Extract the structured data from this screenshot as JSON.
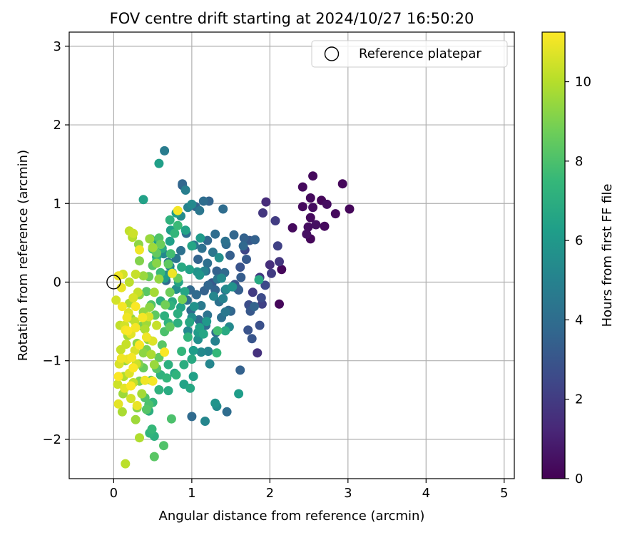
{
  "chart_data": {
    "type": "scatter",
    "title": "FOV centre drift starting at 2024/10/27 16:50:20",
    "xlabel": "Angular distance from reference (arcmin)",
    "ylabel": "Rotation from reference (arcmin)",
    "xlim": [
      -0.57,
      5.13
    ],
    "ylim": [
      -2.5,
      3.18
    ],
    "xticks": [
      0,
      1,
      2,
      3,
      4,
      5
    ],
    "yticks": [
      -2,
      -1,
      0,
      1,
      2,
      3
    ],
    "xtick_labels": [
      "0",
      "1",
      "2",
      "3",
      "4",
      "5"
    ],
    "ytick_labels": [
      "−2",
      "−1",
      "0",
      "1",
      "2",
      "3"
    ],
    "grid": true,
    "legend": {
      "placement": "top-right",
      "entries": [
        "Reference platepar"
      ]
    },
    "reference_point": {
      "name": "Reference platepar",
      "x": 0,
      "y": 0
    },
    "colorbar": {
      "label": "Hours from first FF file",
      "range": [
        0,
        11.25
      ],
      "ticks": [
        0,
        2,
        4,
        6,
        8,
        10
      ],
      "tick_labels": [
        "0",
        "2",
        "4",
        "6",
        "8",
        "10"
      ],
      "colormap": "viridis"
    },
    "colormap_stops": [
      "#440154",
      "#482878",
      "#3e4989",
      "#31688e",
      "#26828e",
      "#1f9e89",
      "#35b779",
      "#6ece58",
      "#b5de2b",
      "#fde725"
    ],
    "points": [
      [
        2.93,
        1.25,
        0.2
      ],
      [
        2.55,
        1.35,
        0.3
      ],
      [
        2.42,
        1.21,
        0.3
      ],
      [
        2.66,
        1.04,
        0.2
      ],
      [
        2.52,
        1.07,
        0.3
      ],
      [
        2.73,
        0.99,
        0.4
      ],
      [
        2.84,
        0.87,
        0.3
      ],
      [
        3.02,
        0.93,
        0.2
      ],
      [
        2.55,
        0.95,
        0.4
      ],
      [
        2.42,
        0.96,
        0.3
      ],
      [
        2.52,
        0.82,
        0.3
      ],
      [
        2.59,
        0.73,
        0.5
      ],
      [
        2.7,
        0.71,
        0.3
      ],
      [
        2.49,
        0.7,
        0.4
      ],
      [
        2.47,
        0.61,
        0.5
      ],
      [
        2.52,
        0.55,
        0.2
      ],
      [
        2.29,
        0.69,
        0.3
      ],
      [
        2.15,
        0.16,
        0.2
      ],
      [
        2.12,
        -0.28,
        0.2
      ],
      [
        1.95,
        1.02,
        1.4
      ],
      [
        1.91,
        0.88,
        1.8
      ],
      [
        2.07,
        0.78,
        2.0
      ],
      [
        2.1,
        0.46,
        2.2
      ],
      [
        2.12,
        0.26,
        1.8
      ],
      [
        2.0,
        0.22,
        1.5
      ],
      [
        2.02,
        0.11,
        2.0
      ],
      [
        1.94,
        -0.04,
        2.5
      ],
      [
        1.87,
        0.06,
        1.9
      ],
      [
        1.89,
        -0.2,
        2.6
      ],
      [
        1.78,
        -0.13,
        2.0
      ],
      [
        1.84,
        -0.9,
        1.6
      ],
      [
        1.9,
        -0.28,
        2.2
      ],
      [
        1.87,
        -0.55,
        2.8
      ],
      [
        1.74,
        0.53,
        3.1
      ],
      [
        1.68,
        0.41,
        2.4
      ],
      [
        1.7,
        0.29,
        3.2
      ],
      [
        1.62,
        0.19,
        2.9
      ],
      [
        1.63,
        0.06,
        3.3
      ],
      [
        1.55,
        -0.03,
        3.0
      ],
      [
        1.6,
        -0.1,
        3.4
      ],
      [
        1.73,
        -0.29,
        2.7
      ],
      [
        1.75,
        -0.37,
        3.1
      ],
      [
        1.8,
        -0.31,
        3.6
      ],
      [
        1.77,
        -0.72,
        3.0
      ],
      [
        1.72,
        -0.61,
        2.9
      ],
      [
        1.5,
        -0.37,
        3.6
      ],
      [
        1.58,
        -0.08,
        3.3
      ],
      [
        1.49,
        0.34,
        3.4
      ],
      [
        1.67,
        0.56,
        3.5
      ],
      [
        1.54,
        0.6,
        3.7
      ],
      [
        1.43,
        0.52,
        4.2
      ],
      [
        1.4,
        0.93,
        4.0
      ],
      [
        1.62,
        -1.12,
        3.5
      ],
      [
        0.88,
        1.23,
        3.5
      ],
      [
        0.88,
        1.25,
        3.7
      ],
      [
        1.22,
        1.03,
        3.6
      ],
      [
        1.15,
        1.03,
        4.0
      ],
      [
        1.05,
        0.96,
        3.6
      ],
      [
        1.1,
        0.91,
        4.4
      ],
      [
        1.3,
        0.61,
        4.0
      ],
      [
        1.2,
        0.53,
        3.8
      ],
      [
        1.13,
        0.43,
        4.2
      ],
      [
        1.27,
        0.38,
        4.4
      ],
      [
        1.08,
        0.29,
        3.6
      ],
      [
        1.2,
        0.24,
        4.1
      ],
      [
        1.32,
        0.14,
        3.5
      ],
      [
        1.18,
        0.14,
        3.8
      ],
      [
        1.42,
        0.12,
        3.9
      ],
      [
        1.33,
        0.04,
        4.4
      ],
      [
        1.26,
        -0.01,
        3.2
      ],
      [
        1.21,
        -0.04,
        3.7
      ],
      [
        1.3,
        -0.1,
        3.6
      ],
      [
        1.43,
        -0.1,
        4.0
      ],
      [
        1.16,
        -0.11,
        3.5
      ],
      [
        0.98,
        -0.1,
        3.8
      ],
      [
        0.94,
        -0.23,
        4.1
      ],
      [
        1.06,
        -0.16,
        3.9
      ],
      [
        0.99,
        -0.36,
        4.0
      ],
      [
        1.09,
        -0.48,
        3.9
      ],
      [
        1.18,
        -0.55,
        4.0
      ],
      [
        1.35,
        -0.25,
        4.2
      ],
      [
        1.43,
        -0.38,
        4.5
      ],
      [
        1.47,
        -0.36,
        3.9
      ],
      [
        1.38,
        -0.45,
        4.2
      ],
      [
        1.2,
        -0.42,
        4.3
      ],
      [
        1.31,
        -0.64,
        4.0
      ],
      [
        0.93,
        0.62,
        4.0
      ],
      [
        0.86,
        0.4,
        4.2
      ],
      [
        1.03,
        0.47,
        4.5
      ],
      [
        0.8,
        0.3,
        4.4
      ],
      [
        0.7,
        0.25,
        4.6
      ],
      [
        0.67,
        0.02,
        3.9
      ],
      [
        0.8,
        -0.09,
        4.3
      ],
      [
        1.0,
        -1.71,
        3.9
      ],
      [
        1.45,
        -1.65,
        4.0
      ],
      [
        1.66,
        0.46,
        3.8
      ],
      [
        1.81,
        0.54,
        3.5
      ],
      [
        1.44,
        0.48,
        3.9
      ],
      [
        1.12,
        -0.3,
        4.6
      ],
      [
        0.65,
        1.67,
        4.7
      ],
      [
        0.92,
        1.17,
        4.8
      ],
      [
        0.95,
        0.95,
        5.0
      ],
      [
        1.0,
        0.99,
        5.3
      ],
      [
        1.38,
        0.05,
        5.4
      ],
      [
        1.35,
        0.31,
        5.6
      ],
      [
        1.16,
        0.14,
        5.0
      ],
      [
        1.21,
        -0.88,
        5.1
      ],
      [
        1.12,
        -0.89,
        5.3
      ],
      [
        1.23,
        -1.04,
        5.2
      ],
      [
        1.3,
        -0.75,
        5.0
      ],
      [
        1.3,
        -1.54,
        5.8
      ],
      [
        1.32,
        -1.58,
        5.4
      ],
      [
        1.17,
        -1.77,
        5.2
      ],
      [
        1.28,
        -0.18,
        5.2
      ],
      [
        1.4,
        -0.21,
        5.0
      ],
      [
        1.48,
        -0.57,
        5.3
      ],
      [
        1.52,
        -0.06,
        5.7
      ],
      [
        1.44,
        -0.09,
        5.4
      ],
      [
        1.03,
        -0.31,
        5.7
      ],
      [
        1.0,
        -0.45,
        5.5
      ],
      [
        0.95,
        -0.62,
        5.3
      ],
      [
        1.08,
        -0.73,
        5.6
      ],
      [
        1.07,
        0.13,
        5.7
      ],
      [
        0.8,
        -0.09,
        5.6
      ],
      [
        0.72,
        0.2,
        5.1
      ],
      [
        0.68,
        0.09,
        5.4
      ],
      [
        0.64,
        0.36,
        5.3
      ],
      [
        0.86,
        0.84,
        5.4
      ],
      [
        1.1,
        0.09,
        5.9
      ],
      [
        1.08,
        -0.64,
        6.1
      ],
      [
        1.19,
        -0.5,
        6.0
      ],
      [
        1.6,
        -1.42,
        6.2
      ],
      [
        0.58,
        1.51,
        6.3
      ],
      [
        0.38,
        1.05,
        6.4
      ],
      [
        0.73,
        0.66,
        6.3
      ],
      [
        0.8,
        0.88,
        6.2
      ],
      [
        0.92,
        0.66,
        6.5
      ],
      [
        1.0,
        0.46,
        6.6
      ],
      [
        1.11,
        0.56,
        6.1
      ],
      [
        0.57,
        0.52,
        6.2
      ],
      [
        0.62,
        0.43,
        6.8
      ],
      [
        0.55,
        0.32,
        6.5
      ],
      [
        0.72,
        0.52,
        6.3
      ],
      [
        0.97,
        0.16,
        6.4
      ],
      [
        0.87,
        0.19,
        6.8
      ],
      [
        0.75,
        0.12,
        6.6
      ],
      [
        0.65,
        0.05,
        6.2
      ],
      [
        0.83,
        0.0,
        6.5
      ],
      [
        0.91,
        -0.12,
        6.6
      ],
      [
        0.75,
        -0.25,
        6.8
      ],
      [
        0.86,
        -0.32,
        6.5
      ],
      [
        0.97,
        -0.51,
        6.7
      ],
      [
        1.1,
        -0.58,
        6.4
      ],
      [
        1.15,
        -0.66,
        6.6
      ],
      [
        1.02,
        -0.87,
        6.2
      ],
      [
        1.0,
        -0.98,
        6.8
      ],
      [
        0.9,
        -1.3,
        6.5
      ],
      [
        0.98,
        -1.35,
        6.7
      ],
      [
        1.02,
        -1.2,
        6.4
      ],
      [
        0.78,
        -1.16,
        6.7
      ],
      [
        0.7,
        -1.38,
        6.9
      ],
      [
        1.86,
        0.03,
        6.8
      ],
      [
        1.43,
        -0.62,
        6.8
      ],
      [
        0.6,
        -0.24,
        7.0
      ],
      [
        0.65,
        -0.43,
        7.1
      ],
      [
        0.73,
        -0.3,
        7.2
      ],
      [
        0.82,
        -0.4,
        7.0
      ],
      [
        0.7,
        -0.52,
        7.3
      ],
      [
        0.82,
        -0.52,
        7.1
      ],
      [
        0.95,
        -0.7,
        7.3
      ],
      [
        0.87,
        -0.88,
        7.4
      ],
      [
        0.9,
        -1.05,
        7.0
      ],
      [
        0.8,
        -1.18,
        7.3
      ],
      [
        0.7,
        -1.05,
        7.1
      ],
      [
        0.58,
        -1.37,
        7.2
      ],
      [
        0.5,
        -1.53,
        7.4
      ],
      [
        0.45,
        -1.64,
        7.0
      ],
      [
        0.46,
        -1.92,
        7.3
      ],
      [
        0.52,
        -1.96,
        7.1
      ],
      [
        0.49,
        -1.87,
        7.5
      ],
      [
        0.6,
        -1.18,
        7.2
      ],
      [
        0.68,
        -1.22,
        7.4
      ],
      [
        0.72,
        0.79,
        7.2
      ],
      [
        0.78,
        0.62,
        7.4
      ],
      [
        0.82,
        0.72,
        7.6
      ],
      [
        0.47,
        0.55,
        7.5
      ],
      [
        0.5,
        0.42,
        7.7
      ],
      [
        0.55,
        0.27,
        7.3
      ],
      [
        0.6,
        0.12,
        7.6
      ],
      [
        0.73,
        0.36,
        7.8
      ],
      [
        1.33,
        -0.62,
        7.8
      ],
      [
        1.32,
        -0.9,
        7.5
      ],
      [
        0.74,
        -1.74,
        8.0
      ],
      [
        0.64,
        -2.08,
        8.1
      ],
      [
        0.52,
        -2.22,
        8.3
      ],
      [
        0.45,
        -1.56,
        8.0
      ],
      [
        0.42,
        -1.62,
        8.2
      ],
      [
        0.4,
        -1.47,
        8.1
      ],
      [
        0.48,
        -1.25,
        8.4
      ],
      [
        0.55,
        -1.1,
        8.2
      ],
      [
        0.58,
        -0.96,
        8.5
      ],
      [
        0.62,
        -0.8,
        8.3
      ],
      [
        0.65,
        -0.63,
        8.0
      ],
      [
        0.72,
        -0.57,
        8.5
      ],
      [
        0.53,
        -0.42,
        8.4
      ],
      [
        0.48,
        -0.29,
        8.1
      ],
      [
        0.42,
        -0.12,
        8.3
      ],
      [
        0.45,
        0.07,
        8.6
      ],
      [
        0.5,
        0.21,
        8.2
      ],
      [
        0.55,
        0.37,
        8.5
      ],
      [
        0.6,
        0.48,
        8.7
      ],
      [
        0.58,
        0.56,
        8.1
      ],
      [
        0.7,
        0.23,
        8.4
      ],
      [
        0.82,
        0.05,
        8.6
      ],
      [
        0.72,
        -0.13,
        8.7
      ],
      [
        0.88,
        -0.22,
        8.9
      ],
      [
        0.66,
        -0.29,
        8.8
      ],
      [
        0.42,
        -0.86,
        8.9
      ],
      [
        0.38,
        -1.09,
        8.6
      ],
      [
        0.33,
        -1.26,
        9.0
      ],
      [
        0.32,
        -1.04,
        9.1
      ],
      [
        0.3,
        -0.78,
        9.3
      ],
      [
        0.36,
        -0.56,
        9.0
      ],
      [
        0.38,
        -0.38,
        9.4
      ],
      [
        0.33,
        -0.16,
        9.2
      ],
      [
        0.38,
        0.08,
        9.5
      ],
      [
        0.33,
        0.27,
        9.1
      ],
      [
        0.32,
        0.48,
        9.3
      ],
      [
        0.46,
        0.55,
        9.5
      ],
      [
        0.5,
        0.44,
        9.6
      ],
      [
        0.55,
        0.24,
        9.2
      ],
      [
        0.58,
        0.04,
        9.4
      ],
      [
        0.52,
        -0.13,
        9.7
      ],
      [
        0.46,
        -0.32,
        9.3
      ],
      [
        0.42,
        -0.52,
        9.6
      ],
      [
        0.44,
        -0.73,
        9.4
      ],
      [
        0.48,
        -0.92,
        9.8
      ],
      [
        0.52,
        -1.05,
        9.5
      ],
      [
        0.36,
        -1.42,
        9.7
      ],
      [
        0.3,
        -1.6,
        9.2
      ],
      [
        0.28,
        -1.75,
        9.6
      ],
      [
        0.33,
        -1.98,
        9.9
      ],
      [
        0.2,
        -0.27,
        9.8
      ],
      [
        0.22,
        -0.46,
        9.4
      ],
      [
        0.18,
        -0.68,
        9.7
      ],
      [
        0.15,
        -1.0,
        9.5
      ],
      [
        0.13,
        -1.2,
        9.9
      ],
      [
        0.12,
        -1.42,
        9.6
      ],
      [
        0.11,
        -1.65,
        9.8
      ],
      [
        0.4,
        -0.6,
        9.9
      ],
      [
        0.38,
        -0.9,
        9.3
      ],
      [
        0.15,
        -2.31,
        10.1
      ],
      [
        0.2,
        0.65,
        10.2
      ],
      [
        0.25,
        0.62,
        10.4
      ],
      [
        0.24,
        0.57,
        10.0
      ],
      [
        0.28,
        0.1,
        10.3
      ],
      [
        0.12,
        0.1,
        10.5
      ],
      [
        0.2,
        0.0,
        10.1
      ],
      [
        0.25,
        -0.2,
        10.6
      ],
      [
        0.31,
        -0.13,
        10.3
      ],
      [
        0.19,
        -0.39,
        10.7
      ],
      [
        0.27,
        -0.5,
        10.2
      ],
      [
        0.14,
        -0.55,
        10.5
      ],
      [
        0.22,
        -0.66,
        10.8
      ],
      [
        0.16,
        -0.79,
        10.3
      ],
      [
        0.27,
        -0.87,
        10.6
      ],
      [
        0.18,
        -0.98,
        10.9
      ],
      [
        0.29,
        -1.04,
        10.4
      ],
      [
        0.2,
        -1.16,
        10.7
      ],
      [
        0.25,
        -1.28,
        10.2
      ],
      [
        0.14,
        -1.35,
        10.8
      ],
      [
        0.22,
        -1.48,
        10.5
      ],
      [
        0.3,
        -1.57,
        10.9
      ],
      [
        0.09,
        -0.86,
        10.3
      ],
      [
        0.07,
        -1.04,
        10.6
      ],
      [
        0.05,
        -1.3,
        10.4
      ],
      [
        0.06,
        -1.55,
        10.8
      ],
      [
        0.08,
        -0.55,
        10.2
      ],
      [
        0.03,
        -0.23,
        10.5
      ],
      [
        0.1,
        -0.07,
        10.9
      ],
      [
        0.45,
        -0.44,
        10.6
      ],
      [
        0.55,
        -0.55,
        10.3
      ],
      [
        0.5,
        -0.75,
        10.7
      ],
      [
        0.82,
        0.91,
        11.1
      ],
      [
        0.75,
        0.11,
        11.0
      ],
      [
        0.65,
        -0.89,
        11.2
      ],
      [
        0.37,
        -0.45,
        11.1
      ],
      [
        0.42,
        -0.7,
        11.0
      ],
      [
        0.33,
        -0.8,
        11.2
      ],
      [
        0.4,
        -1.25,
        11.0
      ],
      [
        0.5,
        -1.26,
        11.1
      ],
      [
        0.25,
        -1.09,
        11.2
      ],
      [
        0.28,
        -0.58,
        11.1
      ],
      [
        0.33,
        0.41,
        11.0
      ],
      [
        0.28,
        -0.31,
        11.2
      ],
      [
        0.15,
        -0.61,
        11.1
      ],
      [
        0.1,
        -0.97,
        11.0
      ],
      [
        0.06,
        -1.2,
        11.2
      ],
      [
        0.23,
        -0.96,
        11.1
      ],
      [
        0.18,
        -0.62,
        11.2
      ],
      [
        0.06,
        0.08,
        11.0
      ],
      [
        0.11,
        -0.31,
        11.1
      ],
      [
        0.22,
        -1.32,
        11.2
      ],
      [
        0.17,
        -0.45,
        11.0
      ]
    ]
  }
}
